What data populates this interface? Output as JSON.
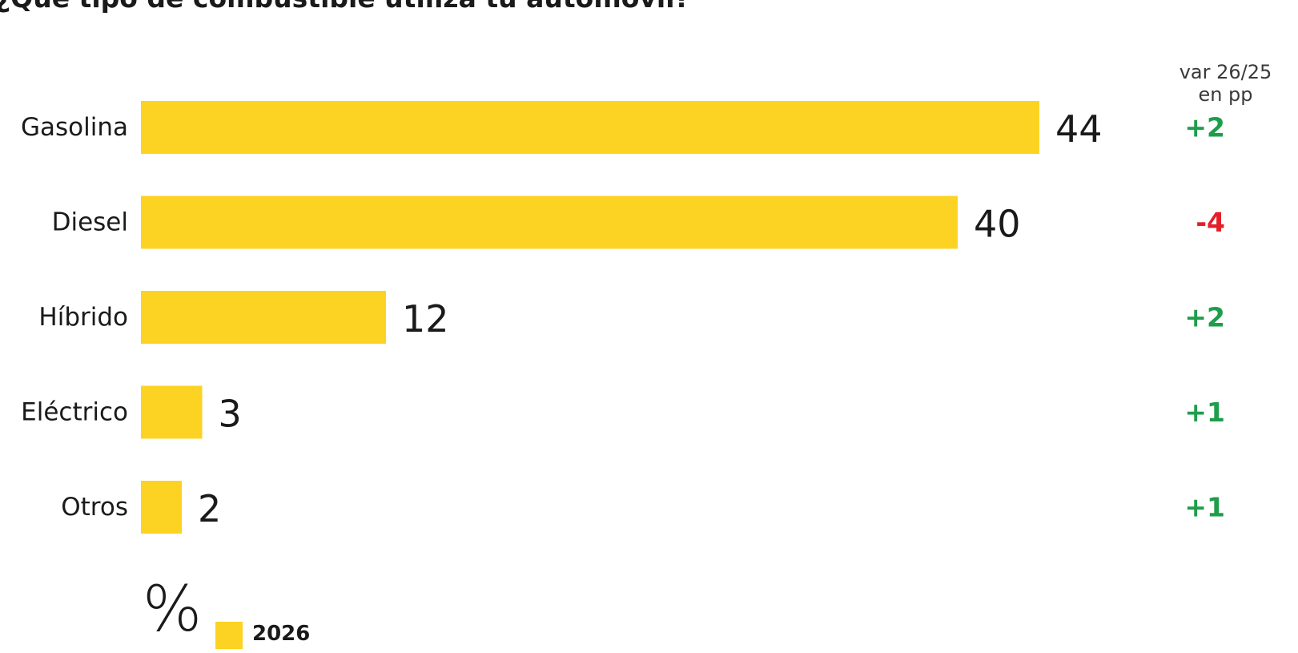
{
  "title": "¿Qué tipo de combustible utiliza tu automóvil?",
  "var_header": {
    "line1": "var 26/25",
    "line2": "en pp"
  },
  "unit": "%",
  "legend": {
    "label": "2026",
    "color": "#FCD322"
  },
  "colors": {
    "bar": "#FCD322",
    "positive": "#1E9E4A",
    "negative": "#E3202A"
  },
  "chart_data": {
    "type": "bar",
    "orientation": "horizontal",
    "categories": [
      "Gasolina",
      "Diesel",
      "Híbrido",
      "Eléctrico",
      "Otros"
    ],
    "series": [
      {
        "name": "2026",
        "values": [
          44,
          40,
          12,
          3,
          2
        ]
      }
    ],
    "variation": [
      "+2",
      "-4",
      "+2",
      "+1",
      "+1"
    ],
    "xlim": [
      0,
      50
    ],
    "grid": false,
    "legend_position": "bottom-left"
  }
}
